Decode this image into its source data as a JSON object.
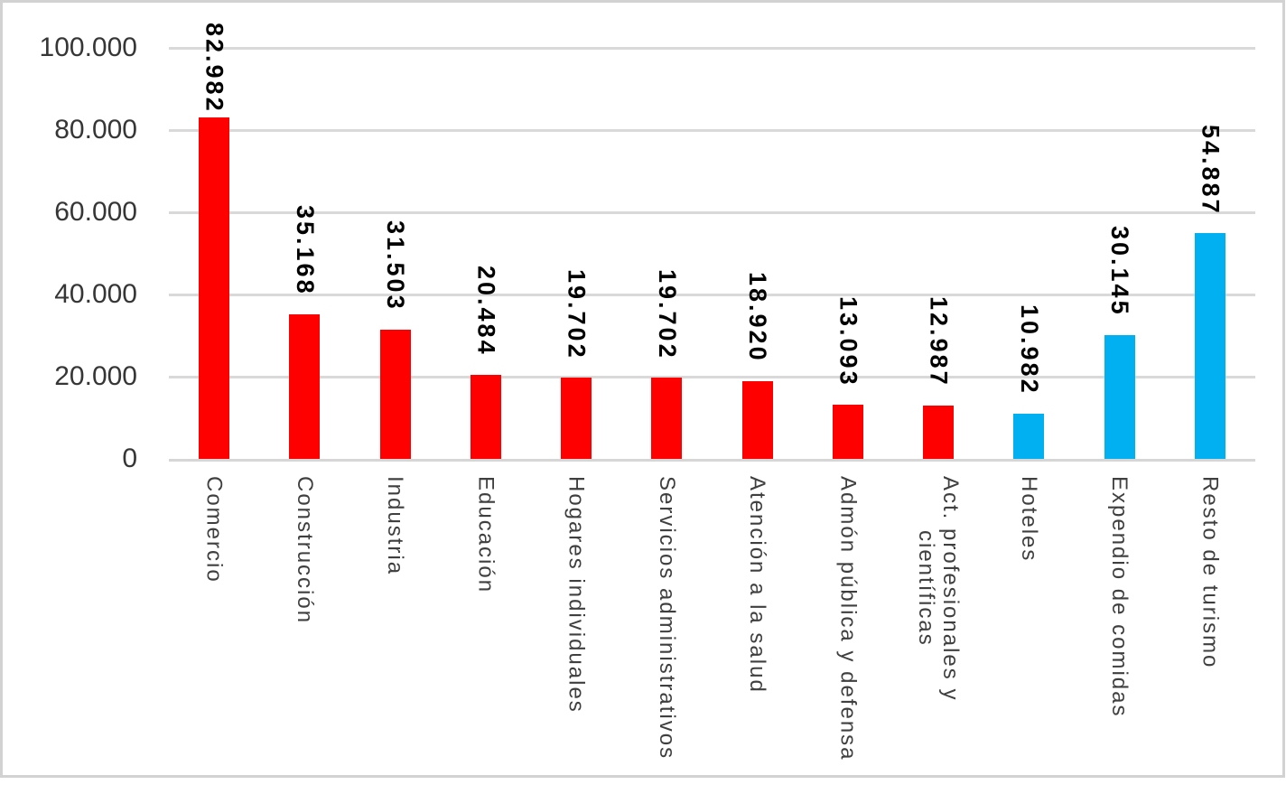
{
  "chart_data": {
    "type": "bar",
    "title": "",
    "xlabel": "",
    "ylabel": "",
    "grid": true,
    "legend": null,
    "y_axis": {
      "min": 0,
      "max": 100000,
      "ticks": [
        {
          "label": "100.000",
          "value": 100000
        },
        {
          "label": "80.000",
          "value": 80000
        },
        {
          "label": "60.000",
          "value": 60000
        },
        {
          "label": "40.000",
          "value": 40000
        },
        {
          "label": "20.000",
          "value": 20000
        },
        {
          "label": "0",
          "value": 0
        }
      ]
    },
    "categories": [
      "Comercio",
      "Construcción",
      "Industria",
      "Educación",
      "Hogares individuales",
      "Servicios administrativos",
      "Atención a la salud",
      "Admón pública y defensa",
      "Act. profesionales y científicas",
      "Hoteles",
      "Expendio de comidas",
      "Resto de turismo"
    ],
    "category_label_lines": [
      [
        "Comercio"
      ],
      [
        "Construcción"
      ],
      [
        "Industria"
      ],
      [
        "Educación"
      ],
      [
        "Hogares individuales"
      ],
      [
        "Servicios administrativos"
      ],
      [
        "Atención a la salud"
      ],
      [
        "Admón pública y defensa"
      ],
      [
        "Act. profesionales y",
        "científicas"
      ],
      [
        "Hoteles"
      ],
      [
        "Expendio de comidas"
      ],
      [
        "Resto de turismo"
      ]
    ],
    "values": [
      82982,
      35168,
      31503,
      20484,
      19702,
      19702,
      18920,
      13093,
      12987,
      10982,
      30145,
      54887
    ],
    "value_labels": [
      "82.982",
      "35.168",
      "31.503",
      "20.484",
      "19.702",
      "19.702",
      "18.920",
      "13.093",
      "12.987",
      "10.982",
      "30.145",
      "54.887"
    ],
    "bar_colors": [
      "#FF0000",
      "#FF0000",
      "#FF0000",
      "#FF0000",
      "#FF0000",
      "#FF0000",
      "#FF0000",
      "#FF0000",
      "#FF0000",
      "#00B0F0",
      "#00B0F0",
      "#00B0F0"
    ]
  },
  "colors": {
    "bar_main": "#FF0000",
    "bar_highlight": "#00B0F0",
    "gridline": "#D9D9D9",
    "frame_border": "#D2D2D2",
    "axis_text": "#363636",
    "category_text": "#3F3F3F",
    "value_label_text": "#000000",
    "background": "#FFFFFF"
  }
}
